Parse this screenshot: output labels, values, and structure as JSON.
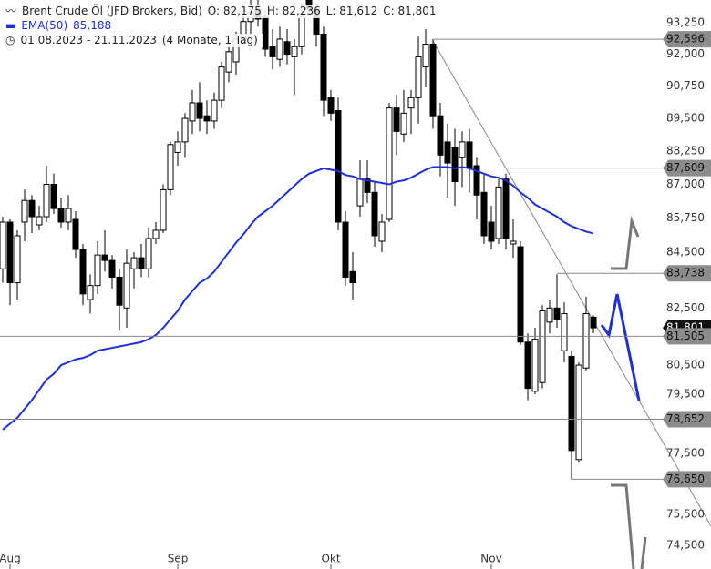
{
  "header": {
    "title": "Brent Crude Öl (JFD Brokers, Bid)",
    "ohlc": [
      "O: 82,175",
      "H: 82,236",
      "L: 81,612",
      "C: 81,801"
    ],
    "ema_value": "85,188",
    "range": "01.08.2023 - 21.11.2023",
    "period": "(4 Monate, 1 Tag)"
  },
  "chart_data": {
    "type": "candlestick",
    "categories": [
      null,
      "Aug",
      null,
      null,
      null,
      null,
      null,
      null,
      null,
      null,
      null,
      null,
      null,
      null,
      null,
      null,
      null,
      null,
      null,
      null,
      null,
      null,
      null,
      null,
      "Sep",
      null,
      null,
      null,
      null,
      null,
      null,
      null,
      null,
      null,
      null,
      null,
      null,
      null,
      null,
      null,
      null,
      null,
      null,
      null,
      null,
      "Okt",
      null,
      null,
      null,
      null,
      null,
      null,
      null,
      null,
      null,
      null,
      null,
      null,
      null,
      null,
      null,
      null,
      null,
      null,
      null,
      null,
      null,
      "Nov",
      null,
      null,
      null,
      null,
      null,
      null,
      null,
      null,
      null,
      null,
      null,
      null,
      null,
      null
    ],
    "open": [
      83.9,
      85.6,
      83.4,
      85.6,
      86.4,
      85.5,
      85.8,
      87.0,
      86.1,
      85.6,
      85.7,
      84.6,
      82.8,
      83.3,
      84.4,
      84.2,
      83.6,
      82.5,
      83.9,
      84.3,
      83.9,
      85.0,
      85.3,
      86.8,
      88.2,
      88.6,
      89.4,
      90.1,
      89.6,
      89.4,
      90.2,
      91.3,
      91.7,
      92.6,
      93.3,
      93.8,
      93.5,
      92.3,
      91.8,
      92.5,
      91.9,
      92.3,
      94.2,
      93.8,
      92.8,
      90.3,
      89.8,
      85.6,
      83.8,
      86.2,
      87.2,
      86.7,
      84.9,
      85.7,
      89.9,
      88.9,
      89.9,
      90.3,
      91.5,
      92.4,
      89.6,
      88.6,
      88.4,
      88.0,
      88.6,
      87.7,
      86.7,
      85.6,
      85.0,
      87.2,
      84.8,
      84.7,
      81.3,
      79.6,
      79.9,
      82.0,
      82.5,
      81.0,
      80.8,
      77.3,
      80.4,
      82.175
    ],
    "high": [
      85.8,
      85.7,
      85.3,
      86.8,
      86.6,
      86.2,
      87.7,
      87.4,
      86.5,
      86.6,
      86.0,
      84.8,
      83.7,
      84.9,
      85.3,
      84.4,
      83.9,
      84.6,
      84.5,
      84.8,
      85.4,
      85.6,
      87.0,
      88.6,
      89.0,
      89.7,
      90.6,
      90.9,
      90.2,
      90.5,
      91.7,
      92.6,
      92.9,
      93.6,
      94.3,
      94.2,
      93.8,
      93.0,
      93.1,
      93.0,
      92.6,
      94.0,
      94.5,
      94.0,
      93.1,
      90.6,
      90.3,
      86.0,
      84.5,
      87.9,
      87.9,
      87.1,
      85.9,
      90.1,
      90.4,
      90.6,
      90.6,
      92.7,
      93.0,
      92.6,
      90.1,
      89.3,
      89.1,
      89.0,
      89.1,
      88.0,
      87.4,
      86.2,
      87.2,
      87.4,
      85.7,
      84.9,
      81.6,
      81.8,
      82.6,
      82.8,
      83.7,
      82.7,
      81.0,
      80.6,
      82.9,
      82.236
    ],
    "low": [
      83.4,
      82.6,
      82.8,
      84.9,
      85.2,
      85.3,
      85.6,
      85.9,
      85.4,
      85.3,
      84.3,
      82.6,
      82.3,
      83.0,
      83.8,
      83.2,
      81.7,
      81.8,
      83.2,
      83.6,
      83.6,
      84.8,
      85.2,
      86.6,
      87.7,
      88.0,
      88.9,
      89.0,
      88.9,
      89.1,
      89.9,
      90.9,
      91.2,
      92.3,
      92.8,
      93.1,
      91.9,
      91.4,
      91.5,
      91.6,
      90.4,
      92.0,
      93.6,
      92.3,
      89.6,
      89.4,
      85.3,
      83.3,
      82.8,
      85.8,
      86.3,
      84.7,
      84.5,
      85.6,
      88.1,
      88.6,
      88.9,
      89.3,
      90.7,
      89.1,
      87.3,
      86.5,
      86.2,
      86.9,
      86.7,
      85.7,
      84.8,
      84.6,
      84.8,
      84.6,
      84.3,
      81.2,
      79.3,
      79.5,
      79.7,
      81.6,
      81.8,
      80.6,
      76.65,
      77.2,
      80.3,
      81.612
    ],
    "close": [
      85.6,
      83.4,
      85.1,
      86.4,
      85.8,
      85.8,
      87.0,
      86.1,
      85.6,
      86.1,
      84.6,
      83.0,
      83.3,
      84.4,
      84.2,
      83.6,
      82.6,
      84.1,
      84.3,
      83.9,
      85.0,
      85.3,
      86.8,
      88.5,
      88.6,
      89.5,
      90.1,
      89.5,
      89.4,
      90.2,
      91.5,
      92.1,
      92.6,
      93.3,
      93.7,
      93.4,
      92.2,
      91.9,
      92.6,
      92.0,
      92.3,
      93.5,
      93.8,
      92.8,
      90.2,
      89.7,
      85.6,
      83.6,
      83.4,
      87.2,
      86.7,
      85.1,
      85.6,
      89.9,
      89.0,
      89.7,
      90.3,
      91.9,
      92.4,
      89.6,
      88.1,
      87.8,
      87.1,
      88.6,
      87.6,
      86.6,
      85.1,
      84.9,
      86.9,
      85.0,
      84.9,
      81.3,
      79.7,
      81.4,
      82.4,
      82.5,
      82.1,
      82.3,
      77.6,
      80.5,
      82.3,
      81.801
    ],
    "ema": {
      "name": "EMA(50)",
      "color": "#1f2fd8",
      "values": [
        78.3,
        78.5,
        78.7,
        79.0,
        79.3,
        79.65,
        80.0,
        80.2,
        80.5,
        80.6,
        80.7,
        80.75,
        80.85,
        81.0,
        81.05,
        81.1,
        81.15,
        81.2,
        81.25,
        81.3,
        81.4,
        81.55,
        81.8,
        82.1,
        82.4,
        82.8,
        83.1,
        83.4,
        83.55,
        83.8,
        84.15,
        84.5,
        84.85,
        85.15,
        85.5,
        85.8,
        86.0,
        86.2,
        86.45,
        86.7,
        86.95,
        87.2,
        87.4,
        87.5,
        87.6,
        87.55,
        87.5,
        87.35,
        87.3,
        87.2,
        87.15,
        87.1,
        87.05,
        87.0,
        87.1,
        87.15,
        87.25,
        87.4,
        87.55,
        87.65,
        87.65,
        87.65,
        87.6,
        87.65,
        87.6,
        87.5,
        87.4,
        87.3,
        87.25,
        87.15,
        86.95,
        86.7,
        86.5,
        86.25,
        86.1,
        85.95,
        85.8,
        85.6,
        85.45,
        85.35,
        85.25,
        85.188
      ]
    },
    "ylim": [
      73.75,
      94.17
    ],
    "log": true,
    "yticks": [
      {
        "value": 93.25,
        "label": "93,250"
      },
      {
        "value": 92,
        "label": "92,000"
      },
      {
        "value": 90.75,
        "label": "90,750"
      },
      {
        "value": 89.5,
        "label": "89,500"
      },
      {
        "value": 88.25,
        "label": "88,250"
      },
      {
        "value": 87,
        "label": "87,000"
      },
      {
        "value": 85.75,
        "label": "85,750"
      },
      {
        "value": 84.5,
        "label": "84,500"
      },
      {
        "value": 82.5,
        "label": "82,500"
      },
      {
        "value": 80.5,
        "label": "80,500"
      },
      {
        "value": 79.5,
        "label": "79,500"
      },
      {
        "value": 77.5,
        "label": "77,500"
      },
      {
        "value": 75.5,
        "label": "75,500"
      },
      {
        "value": 74.5,
        "label": "74,500"
      }
    ],
    "last": {
      "value": 81.801,
      "label": "81,801"
    },
    "levels": [
      {
        "value": 92.596,
        "label": "92,596"
      },
      {
        "value": 87.609,
        "label": "87,609"
      },
      {
        "value": 83.738,
        "label": "83,738"
      },
      {
        "value": 81.505,
        "label": "81,505"
      },
      {
        "value": 78.652,
        "label": "78,652"
      },
      {
        "value": 76.65,
        "label": "76,650"
      }
    ]
  }
}
